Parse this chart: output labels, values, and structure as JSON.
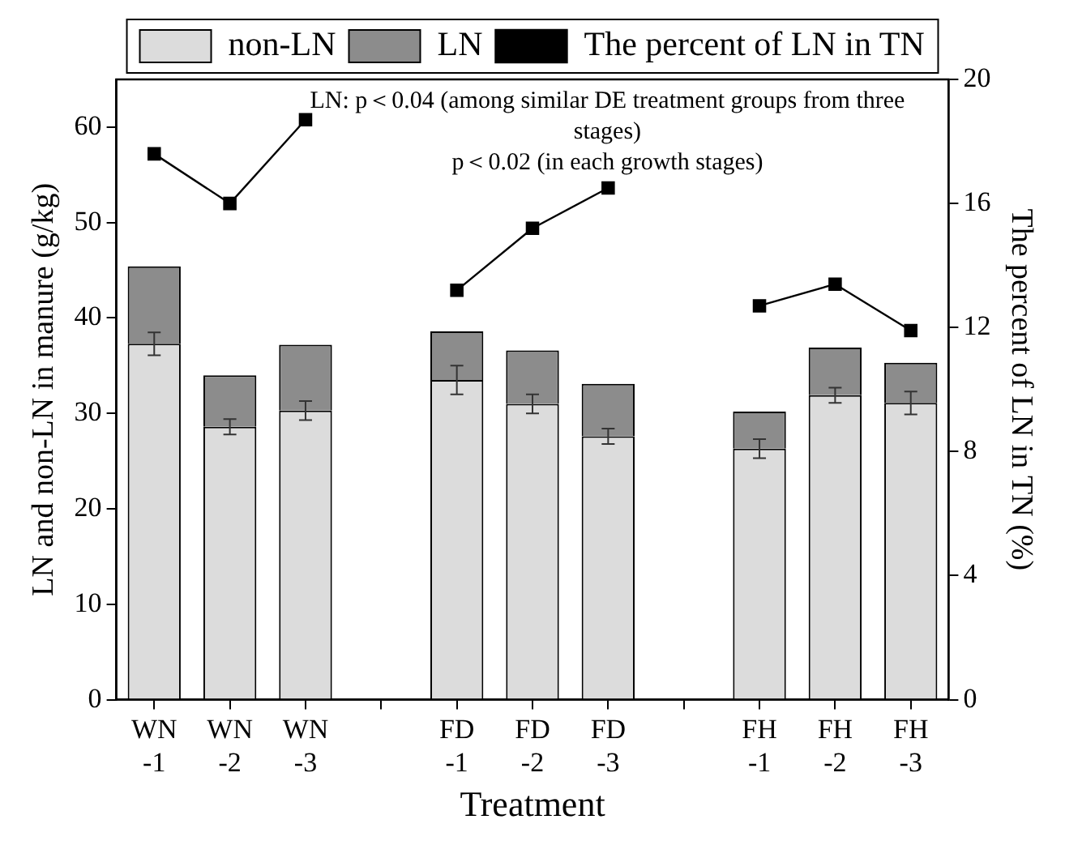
{
  "chart_data": {
    "type": "bar",
    "stacked": true,
    "legend": "top",
    "grid": false,
    "categories": [
      "WN\n-1",
      "WN\n-2",
      "WN\n-3",
      null,
      "FD\n-1",
      "FD\n-2",
      "FD\n-3",
      null,
      "FH\n-1",
      "FH\n-2",
      "FH\n-3"
    ],
    "series": [
      {
        "name": "non-LN",
        "color": "#dcdcdc",
        "values": [
          37.3,
          28.6,
          30.3,
          null,
          33.5,
          31.0,
          27.6,
          null,
          26.3,
          31.9,
          31.1
        ],
        "errors": [
          1.2,
          0.8,
          1.0,
          null,
          1.5,
          1.0,
          0.8,
          null,
          1.0,
          0.8,
          1.2
        ]
      },
      {
        "name": "LN",
        "color": "#8c8c8c",
        "values": [
          8.1,
          5.4,
          6.9,
          null,
          5.1,
          5.6,
          5.5,
          null,
          3.9,
          5.0,
          4.2
        ]
      },
      {
        "name": "The percent of LN in TN",
        "type": "line",
        "axis": "y2",
        "marker": "square",
        "color": "#000000",
        "values": [
          17.6,
          16.0,
          18.7,
          null,
          13.2,
          15.2,
          16.5,
          null,
          12.7,
          13.4,
          11.9
        ]
      }
    ],
    "ylim": [
      0,
      65
    ],
    "yticks": [
      0,
      10,
      20,
      30,
      40,
      50,
      60
    ],
    "y2lim": [
      0,
      20
    ],
    "y2ticks": [
      0,
      4,
      8,
      12,
      16,
      20
    ],
    "xlabel": "Treatment",
    "ylabel": "LN and non-LN in manure (g/kg)",
    "y2label": "The percent of LN in TN (%)",
    "annotations": [
      "LN: p＜0.04 (among similar DE treatment groups from three stages)",
      "p＜0.02 (in each growth stages)"
    ]
  }
}
